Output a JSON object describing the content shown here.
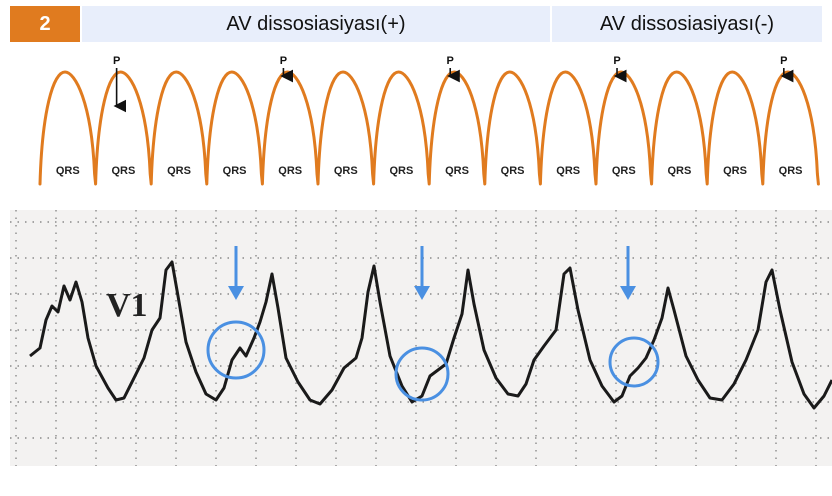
{
  "header": {
    "number": "2",
    "title_left": "AV dissosiasiyası(+)",
    "title_right": "AV dissosiasiyası(-)"
  },
  "schema": {
    "beat_label": "QRS",
    "p_label": "P",
    "beat_count": 14,
    "p_wave_beats": [
      1,
      4,
      7,
      10,
      13
    ],
    "colors": {
      "waveform": "#e07b1f",
      "arrow": "#111111",
      "text": "#222222"
    }
  },
  "ecg_strip": {
    "lead_label": "V1",
    "annotated_beat_count": 3,
    "colors": {
      "trace": "#1a1a1a",
      "marker": "#4a90e2",
      "grid_dot": "#8a8a8a",
      "background": "#f3f2f1"
    }
  }
}
